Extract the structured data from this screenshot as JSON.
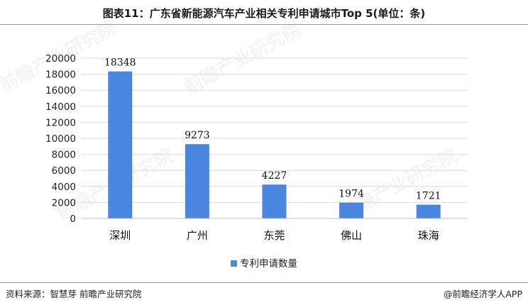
{
  "header": {
    "title": "图表11：广东省新能源汽车产业相关专利申请城市Top 5(单位：条)"
  },
  "footer": {
    "source": "资料来源：智慧芽 前瞻产业研究院",
    "brand": "@前瞻经济学人APP"
  },
  "watermark": {
    "text": "前瞻产业研究院"
  },
  "colors": {
    "bar": "#4a86e0",
    "grid": "#d9d9d9",
    "axis": "#bfbfbf"
  },
  "chart_data": {
    "type": "bar",
    "title": "图表11：广东省新能源汽车产业相关专利申请城市Top 5(单位：条)",
    "categories": [
      "深圳",
      "广州",
      "东莞",
      "佛山",
      "珠海"
    ],
    "series": [
      {
        "name": "专利申请数量",
        "values": [
          18348,
          9273,
          4227,
          1974,
          1721
        ]
      }
    ],
    "yticks": [
      0,
      2000,
      4000,
      6000,
      8000,
      10000,
      12000,
      14000,
      16000,
      18000,
      20000
    ],
    "ylim": [
      0,
      20000
    ],
    "grid": true,
    "legend_position": "bottom",
    "data_labels": true
  }
}
